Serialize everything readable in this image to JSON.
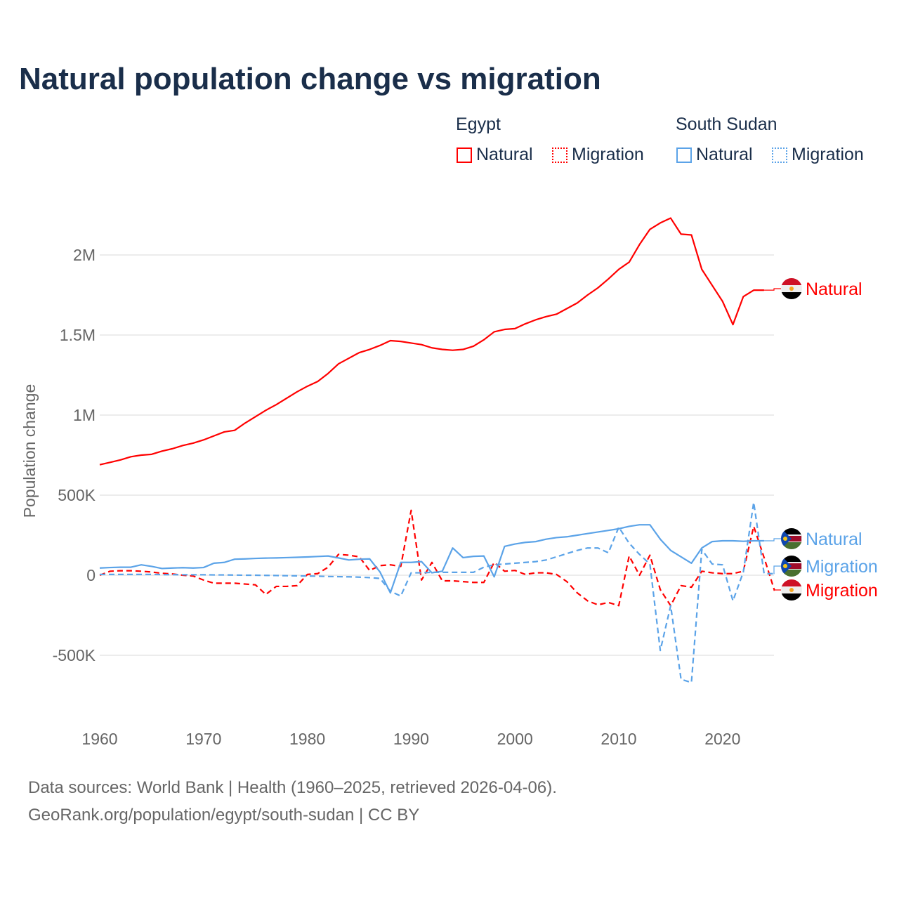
{
  "chart_data": {
    "type": "line",
    "title": "Natural population change vs migration",
    "ylabel": "Population change",
    "xlabel": "",
    "ylim": [
      -700000,
      2300000
    ],
    "xlim": [
      1960,
      2025
    ],
    "grid": true,
    "y_ticks": [
      {
        "v": -500000,
        "label": "-500K"
      },
      {
        "v": 0,
        "label": "0"
      },
      {
        "v": 500000,
        "label": "500K"
      },
      {
        "v": 1000000,
        "label": "1M"
      },
      {
        "v": 1500000,
        "label": "1.5M"
      },
      {
        "v": 2000000,
        "label": "2M"
      }
    ],
    "x_ticks": [
      {
        "v": 1960,
        "label": "1960"
      },
      {
        "v": 1970,
        "label": "1970"
      },
      {
        "v": 1980,
        "label": "1980"
      },
      {
        "v": 1990,
        "label": "1990"
      },
      {
        "v": 2000,
        "label": "2000"
      },
      {
        "v": 2010,
        "label": "2010"
      },
      {
        "v": 2020,
        "label": "2020"
      }
    ],
    "legend_groups": [
      {
        "name": "Egypt"
      },
      {
        "name": "South Sudan"
      }
    ],
    "x_start": 1960,
    "series": [
      {
        "name": "Natural",
        "country": "Egypt",
        "color": "#ff0000",
        "dash": false,
        "end_label": "Natural",
        "values_k": [
          690,
          705,
          720,
          740,
          750,
          755,
          775,
          790,
          810,
          825,
          845,
          870,
          895,
          905,
          950,
          990,
          1030,
          1065,
          1105,
          1145,
          1180,
          1210,
          1260,
          1320,
          1355,
          1390,
          1410,
          1435,
          1465,
          1460,
          1450,
          1440,
          1420,
          1410,
          1405,
          1410,
          1430,
          1470,
          1520,
          1535,
          1540,
          1570,
          1595,
          1615,
          1630,
          1665,
          1700,
          1750,
          1795,
          1850,
          1910,
          1955,
          2065,
          2160,
          2200,
          2230,
          2130,
          2125,
          1910,
          1810,
          1710,
          1565,
          1740,
          1780,
          1780
        ]
      },
      {
        "name": "Migration",
        "country": "Egypt",
        "color": "#ff0000",
        "dash": true,
        "end_label": "Migration",
        "values_k": [
          0,
          25,
          28,
          28,
          25,
          20,
          12,
          8,
          0,
          -5,
          -30,
          -50,
          -50,
          -50,
          -55,
          -60,
          -120,
          -70,
          -70,
          -65,
          5,
          10,
          50,
          130,
          125,
          115,
          30,
          60,
          65,
          55,
          405,
          -30,
          80,
          -35,
          -35,
          -40,
          -45,
          -45,
          80,
          25,
          30,
          5,
          15,
          15,
          5,
          -40,
          -110,
          -160,
          -185,
          -170,
          -190,
          120,
          0,
          125,
          -90,
          -190,
          -65,
          -75,
          25,
          15,
          10,
          10,
          25,
          305,
          110,
          -95
        ]
      },
      {
        "name": "Natural",
        "country": "South Sudan",
        "color": "#5ba3e8",
        "dash": false,
        "end_label": "Natural",
        "values_k": [
          45,
          48,
          50,
          50,
          65,
          55,
          42,
          45,
          47,
          45,
          48,
          75,
          80,
          100,
          102,
          105,
          107,
          108,
          110,
          112,
          114,
          117,
          120,
          108,
          95,
          100,
          102,
          20,
          -110,
          80,
          80,
          85,
          15,
          25,
          170,
          110,
          118,
          120,
          -10,
          180,
          195,
          205,
          210,
          225,
          235,
          240,
          250,
          260,
          270,
          280,
          290,
          305,
          315,
          315,
          225,
          155,
          115,
          75,
          170,
          210,
          215,
          215,
          212,
          215,
          215
        ]
      },
      {
        "name": "Migration",
        "country": "South Sudan",
        "color": "#5ba3e8",
        "dash": true,
        "end_label": "Migration",
        "values_k": [
          5,
          5,
          5,
          5,
          5,
          5,
          4,
          4,
          3,
          3,
          3,
          2,
          2,
          1,
          0,
          0,
          -1,
          -2,
          -3,
          -4,
          -5,
          -6,
          -8,
          -9,
          -10,
          -12,
          -15,
          -20,
          -100,
          -130,
          15,
          15,
          18,
          18,
          18,
          18,
          18,
          50,
          65,
          70,
          75,
          80,
          85,
          95,
          115,
          135,
          155,
          170,
          170,
          140,
          300,
          200,
          130,
          70,
          -470,
          -190,
          -650,
          -670,
          160,
          70,
          65,
          -160,
          20,
          455,
          10,
          10
        ]
      }
    ]
  },
  "legend": {
    "egypt": "Egypt",
    "south_sudan": "South Sudan",
    "natural": "Natural",
    "migration": "Migration"
  },
  "footer": {
    "line1": "Data sources: World Bank | Health (1960–2025, retrieved 2026-04-06).",
    "line2": "GeoRank.org/population/egypt/south-sudan | CC BY"
  }
}
